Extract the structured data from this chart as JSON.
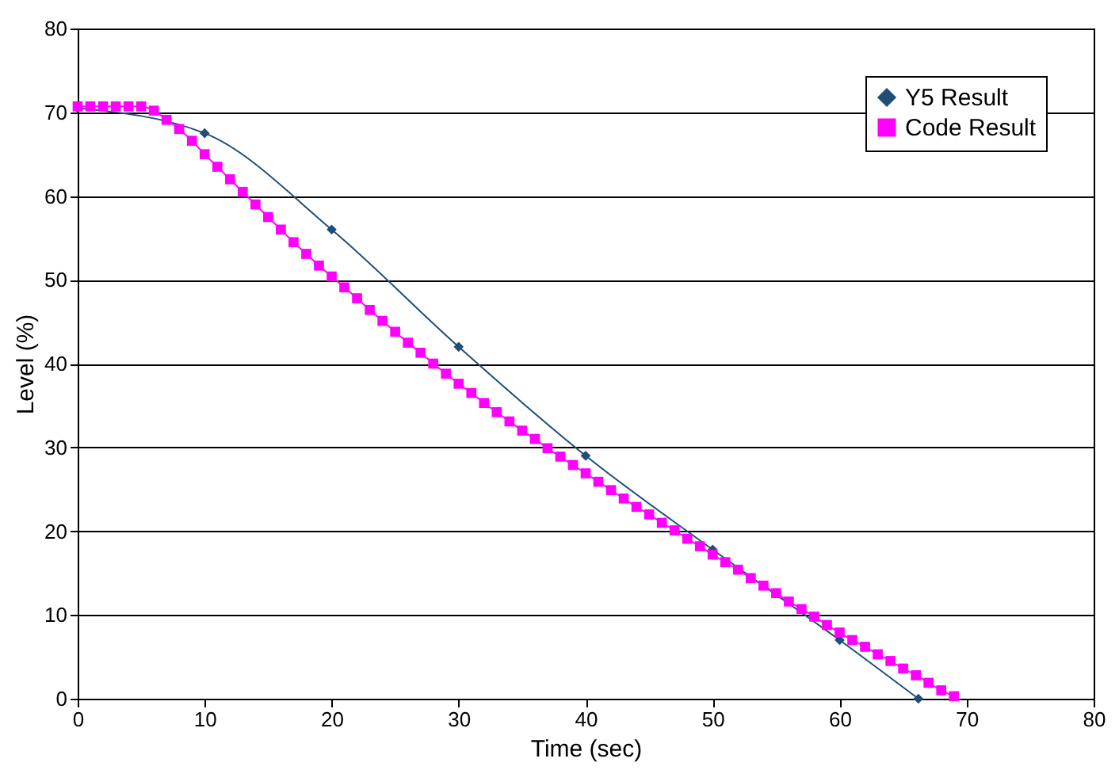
{
  "chart_data": {
    "type": "line",
    "xlabel": "Time (sec)",
    "ylabel": "Level (%)",
    "xlim": [
      0,
      80
    ],
    "xticks": [
      0,
      10,
      20,
      30,
      40,
      50,
      60,
      70,
      80
    ],
    "ylim": [
      0,
      80
    ],
    "yticks": [
      0,
      10,
      20,
      30,
      40,
      50,
      60,
      70,
      80
    ],
    "grid": "y",
    "legend": "top right",
    "line_style": "solid",
    "series": [
      {
        "name": "Y5 Result",
        "color": "#1f4e79",
        "marker": "diamond",
        "x": [
          0,
          10,
          20,
          30,
          40,
          50,
          60,
          66.2
        ],
        "values": [
          70.5,
          67.5,
          56,
          42,
          29,
          17.8,
          7,
          0
        ]
      },
      {
        "name": "Code Result",
        "color": "#ff00ff",
        "marker": "square",
        "x": [
          0,
          1,
          2,
          3,
          4,
          5,
          6,
          7,
          8,
          9,
          10,
          11,
          12,
          13,
          14,
          15,
          16,
          17,
          18,
          19,
          20,
          21,
          22,
          23,
          24,
          25,
          26,
          27,
          28,
          29,
          30,
          31,
          32,
          33,
          34,
          35,
          36,
          37,
          38,
          39,
          40,
          41,
          42,
          43,
          44,
          45,
          46,
          47,
          48,
          49,
          50,
          51,
          52,
          53,
          54,
          55,
          56,
          57,
          58,
          59,
          60,
          61,
          62,
          63,
          64,
          65,
          66,
          67,
          68,
          69
        ],
        "values": [
          70.7,
          70.7,
          70.7,
          70.7,
          70.7,
          70.7,
          70.2,
          69.1,
          68.0,
          66.6,
          65.0,
          63.5,
          62.0,
          60.5,
          59.0,
          57.5,
          56.0,
          54.5,
          53.1,
          51.7,
          50.4,
          49.1,
          47.8,
          46.4,
          45.1,
          43.8,
          42.5,
          41.3,
          40.0,
          38.8,
          37.6,
          36.5,
          35.3,
          34.2,
          33.1,
          32.0,
          31.0,
          29.9,
          28.9,
          27.9,
          26.9,
          25.9,
          24.9,
          23.9,
          22.9,
          22.0,
          21.0,
          20.1,
          19.1,
          18.2,
          17.2,
          16.3,
          15.4,
          14.4,
          13.5,
          12.6,
          11.6,
          10.7,
          9.8,
          8.8,
          7.9,
          7.0,
          6.2,
          5.3,
          4.5,
          3.6,
          2.8,
          1.9,
          1.0,
          0.3
        ]
      }
    ]
  }
}
